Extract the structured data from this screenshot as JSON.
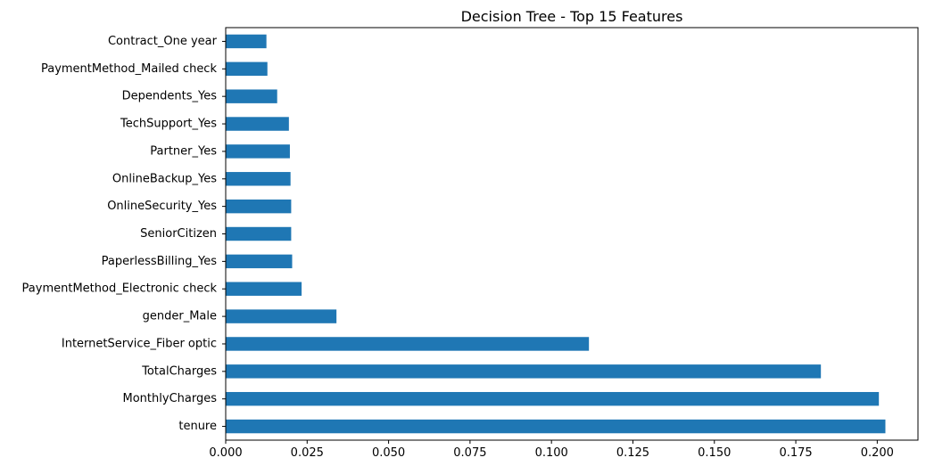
{
  "chart_data": {
    "type": "bar",
    "orientation": "horizontal",
    "title": "Decision Tree - Top 15 Features",
    "xlabel": "",
    "ylabel": "",
    "categories": [
      "tenure",
      "MonthlyCharges",
      "TotalCharges",
      "InternetService_Fiber optic",
      "gender_Male",
      "PaymentMethod_Electronic check",
      "PaperlessBilling_Yes",
      "SeniorCitizen",
      "OnlineSecurity_Yes",
      "OnlineBackup_Yes",
      "Partner_Yes",
      "TechSupport_Yes",
      "Dependents_Yes",
      "PaymentMethod_Mailed check",
      "Contract_One year"
    ],
    "values": [
      0.2025,
      0.2005,
      0.1827,
      0.1115,
      0.034,
      0.0233,
      0.0204,
      0.0201,
      0.0201,
      0.0199,
      0.0197,
      0.0194,
      0.0158,
      0.0128,
      0.0125
    ],
    "xlim": [
      0.0,
      0.2125
    ],
    "xticks": [
      0.0,
      0.025,
      0.05,
      0.075,
      0.1,
      0.125,
      0.15,
      0.175,
      0.2
    ],
    "xtick_labels": [
      "0.000",
      "0.025",
      "0.050",
      "0.075",
      "0.100",
      "0.125",
      "0.150",
      "0.175",
      "0.200"
    ],
    "grid": false,
    "legend": "none",
    "bar_color": "#1f77b4"
  }
}
